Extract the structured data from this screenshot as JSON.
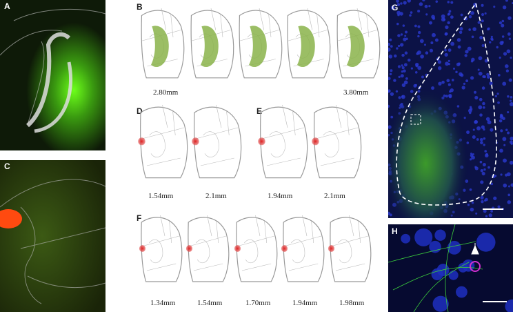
{
  "panels": {
    "A": {
      "label": "A"
    },
    "B": {
      "label": "B",
      "captions": [
        "2.80mm",
        "3.80mm"
      ]
    },
    "C": {
      "label": "C"
    },
    "D": {
      "label": "D",
      "captions": [
        "1.54mm",
        "2.1mm"
      ]
    },
    "E": {
      "label": "E",
      "captions": [
        "1.94mm",
        "2.1mm"
      ]
    },
    "F": {
      "label": "F",
      "captions": [
        "1.34mm",
        "1.54mm",
        "1.70mm",
        "1.94mm",
        "1.98mm"
      ]
    },
    "G": {
      "label": "G"
    },
    "H": {
      "label": "H"
    }
  }
}
